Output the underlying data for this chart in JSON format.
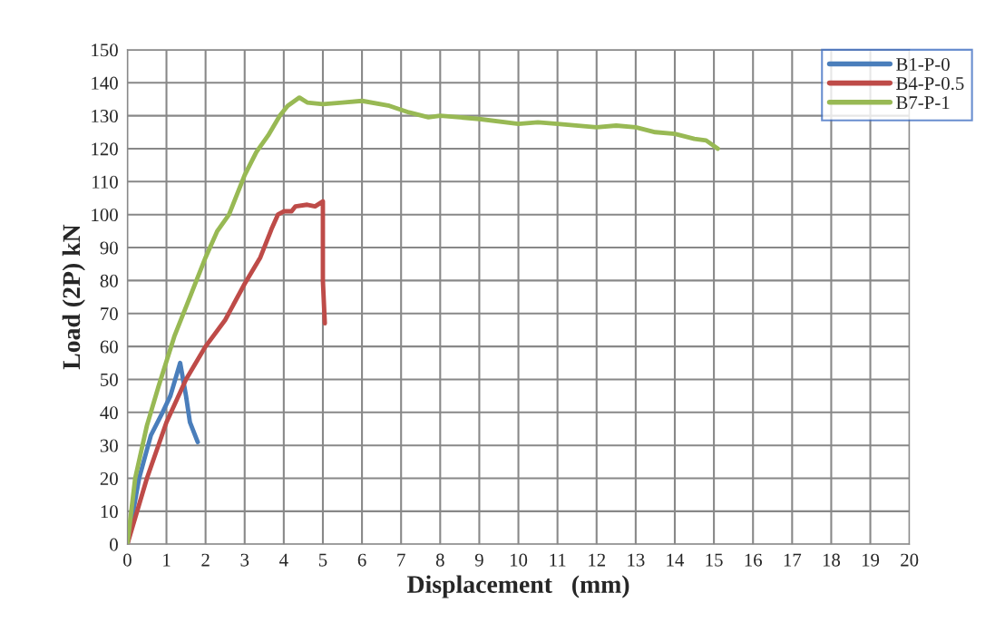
{
  "chart_data": {
    "type": "line",
    "xlabel": "Displacement   (mm)",
    "ylabel": "Load (2P) kN",
    "xlim": [
      0,
      20
    ],
    "xticks": [
      0,
      1,
      2,
      3,
      4,
      5,
      6,
      7,
      8,
      9,
      10,
      11,
      12,
      13,
      14,
      15,
      16,
      17,
      18,
      19,
      20
    ],
    "ylim": [
      0,
      150
    ],
    "yticks": [
      0,
      10,
      20,
      30,
      40,
      50,
      60,
      70,
      80,
      90,
      100,
      110,
      120,
      130,
      140,
      150
    ],
    "grid": true,
    "legend": "top right",
    "marker": "none",
    "line_style": "solid",
    "series": [
      {
        "name": "B1-P-0",
        "color": "#4a7ebb",
        "x": [
          0,
          0.3,
          0.6,
          0.9,
          1.1,
          1.35,
          1.5,
          1.6,
          1.8
        ],
        "values": [
          0,
          20,
          33,
          40,
          45,
          55,
          45,
          37,
          31
        ]
      },
      {
        "name": "B4-P-0.5",
        "color": "#be4b48",
        "x": [
          0,
          0.5,
          1,
          1.5,
          2,
          2.5,
          3,
          3.4,
          3.7,
          3.85,
          4,
          4.2,
          4.3,
          4.6,
          4.8,
          5,
          5,
          5.05
        ],
        "values": [
          0,
          20,
          37,
          50,
          60,
          68,
          79,
          87,
          96,
          100,
          101,
          101,
          102.5,
          103,
          102.5,
          104,
          80,
          67
        ]
      },
      {
        "name": "B7-P-1",
        "color": "#98b954",
        "x": [
          0,
          0.2,
          0.5,
          0.8,
          1.2,
          1.6,
          2,
          2.3,
          2.6,
          2.8,
          3,
          3.3,
          3.6,
          3.9,
          4.1,
          4.4,
          4.6,
          5,
          5.5,
          6,
          6.7,
          7.2,
          7.7,
          8,
          8.5,
          9,
          10,
          10.5,
          11,
          12,
          12.5,
          13,
          13.5,
          14,
          14.5,
          14.8,
          15.1
        ],
        "values": [
          0,
          20,
          36,
          48,
          63,
          75,
          87,
          95,
          100,
          106,
          112,
          119,
          124,
          130,
          133,
          135.5,
          134,
          133.5,
          134,
          134.5,
          133,
          131,
          129.5,
          130,
          129.5,
          129,
          127.5,
          128,
          127.5,
          126.5,
          127,
          126.5,
          125,
          124.5,
          123,
          122.5,
          120
        ]
      }
    ]
  }
}
